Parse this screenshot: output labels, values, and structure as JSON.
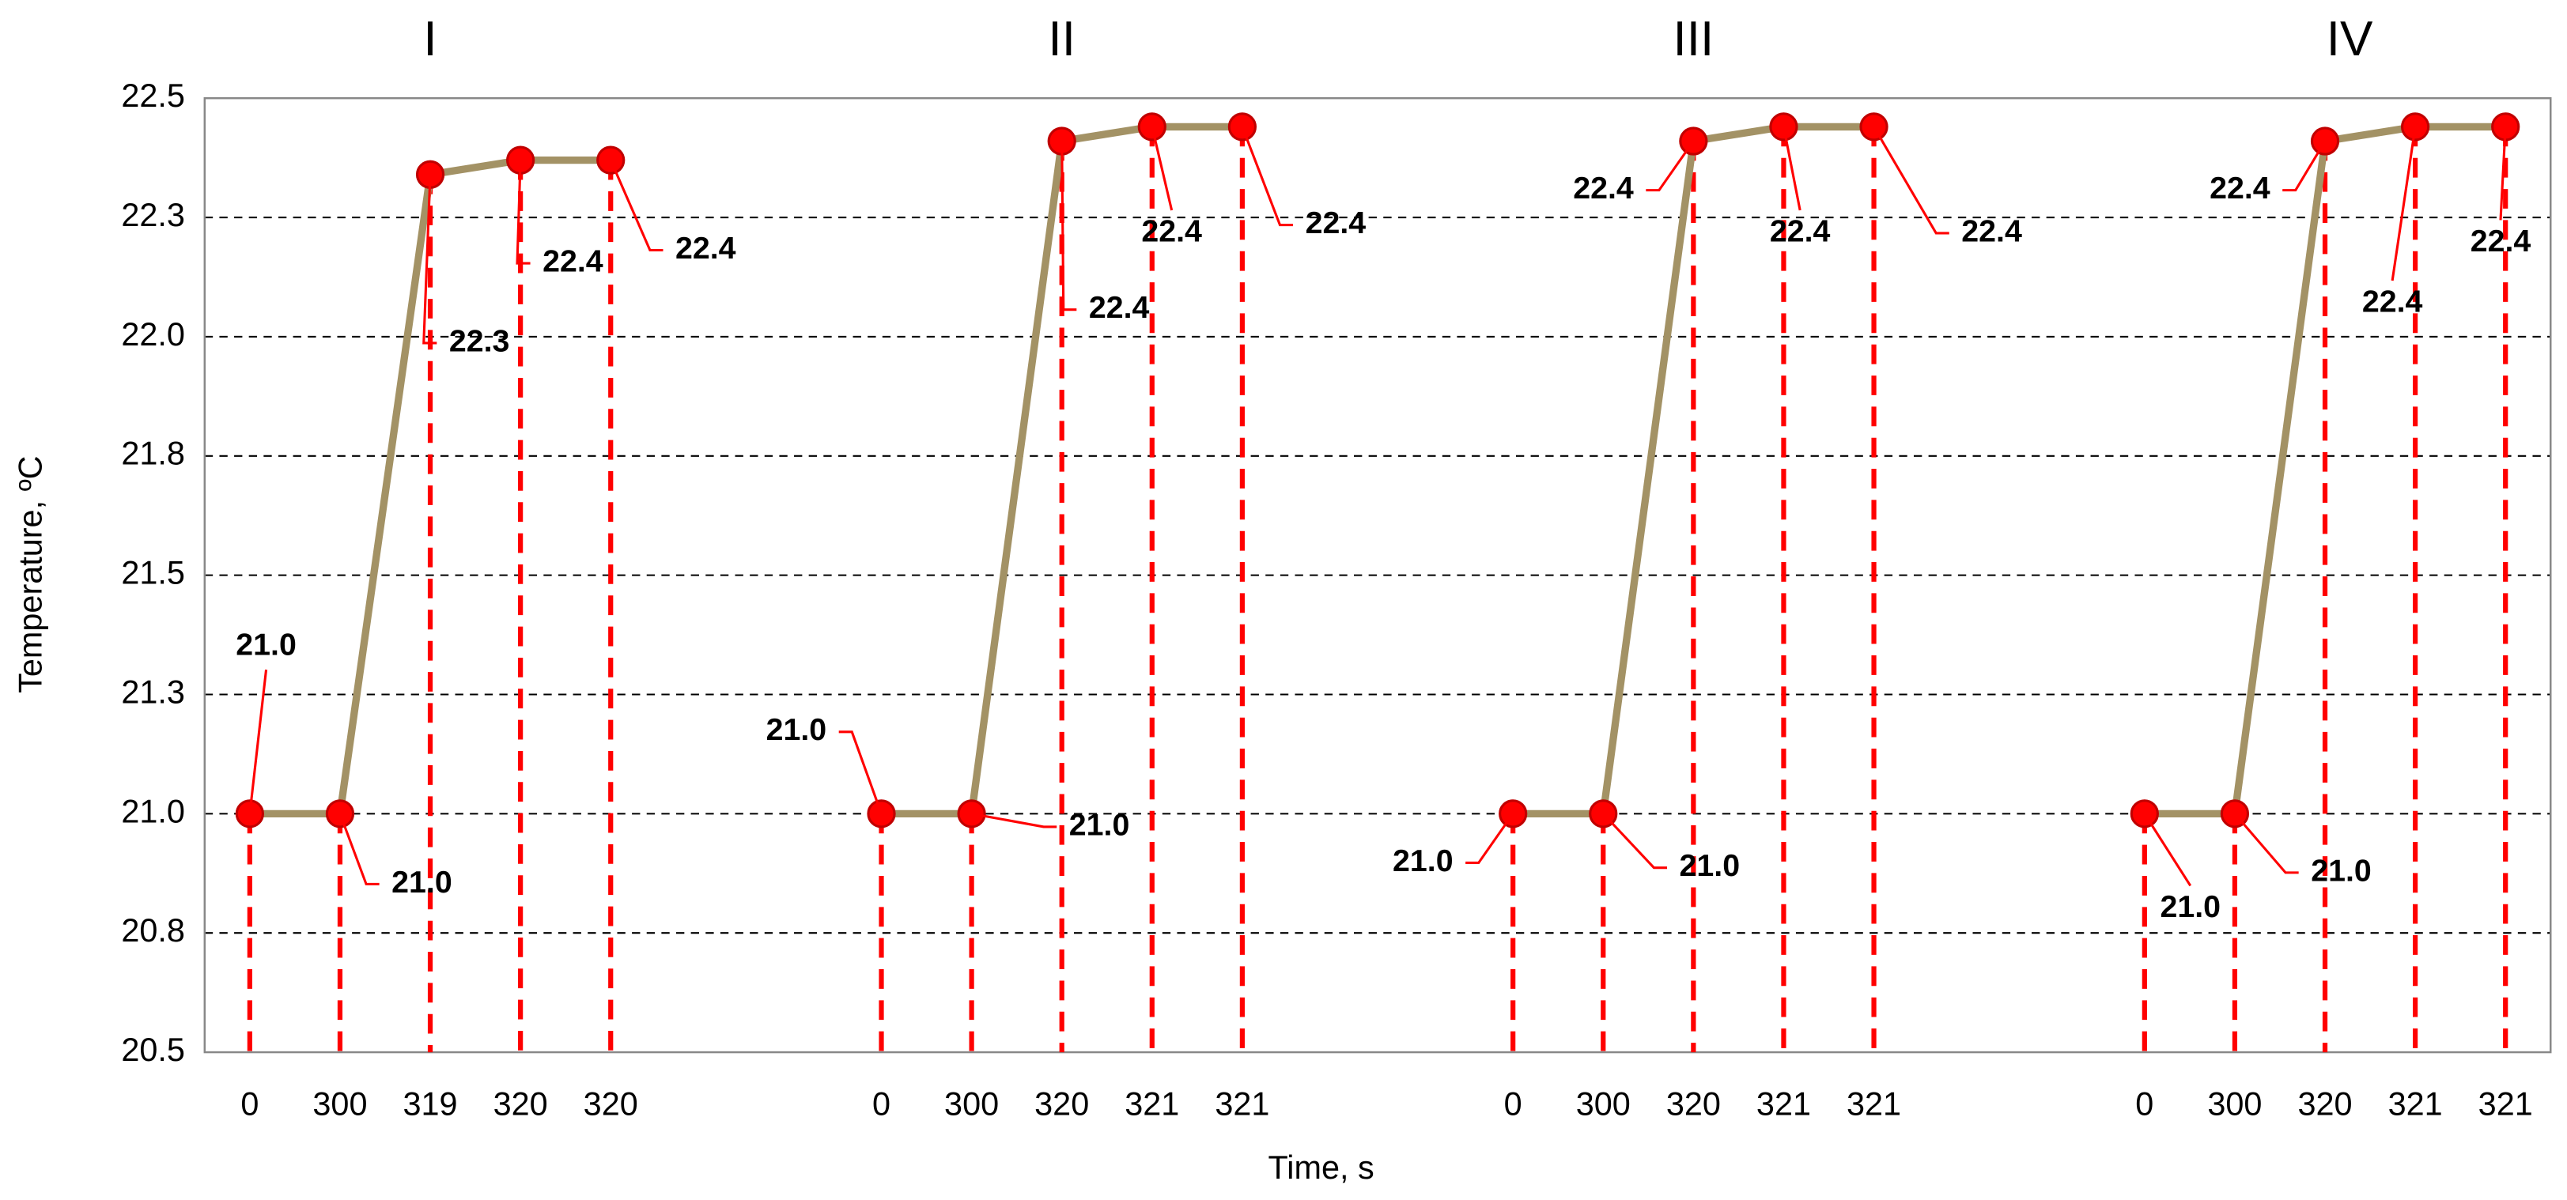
{
  "chart_data": {
    "type": "line",
    "x_label": "Time, s",
    "y_label": "Temperature, ºC",
    "annotations": [
      "I",
      "II",
      "III",
      "IV"
    ],
    "categories": [
      "0",
      "300",
      "319",
      "320",
      "320",
      null,
      null,
      "0",
      "300",
      "320",
      "321",
      "321",
      null,
      null,
      "0",
      "300",
      "320",
      "321",
      "321",
      null,
      null,
      "0",
      "300",
      "320",
      "321",
      "321"
    ],
    "values": [
      21,
      21,
      22.34,
      22.37,
      22.37,
      null,
      null,
      21,
      21,
      22.41,
      22.44,
      22.44,
      null,
      null,
      21,
      21,
      22.41,
      22.44,
      22.44,
      null,
      null,
      21,
      21,
      22.41,
      22.44,
      22.44
    ],
    "value_labels": [
      "21.0",
      "21.0",
      "22.3",
      "22.4",
      "22.4",
      null,
      null,
      "21.0",
      "21.0",
      "22.4",
      "22.4",
      "22.4",
      null,
      null,
      "21.0",
      "21.0",
      "22.4",
      "22.4",
      "22.4",
      null,
      null,
      "21.0",
      "21.0",
      "22.4",
      "22.4",
      "22.4"
    ],
    "color": "#a39265",
    "marker_color": "#ff0000",
    "drop_line_color": "#ff0000",
    "ylim": [
      20.5,
      22.5
    ],
    "yticks": [
      20.5,
      {
        "value": 20.75,
        "label": "20.8"
      },
      {
        "value": 21,
        "label": "21.0"
      },
      {
        "value": 21.25,
        "label": "21.3"
      },
      21.5,
      {
        "value": 21.75,
        "label": "21.8"
      },
      {
        "value": 22,
        "label": "22.0"
      },
      {
        "value": 22.25,
        "label": "22.3"
      },
      22.5
    ],
    "grid": true
  }
}
